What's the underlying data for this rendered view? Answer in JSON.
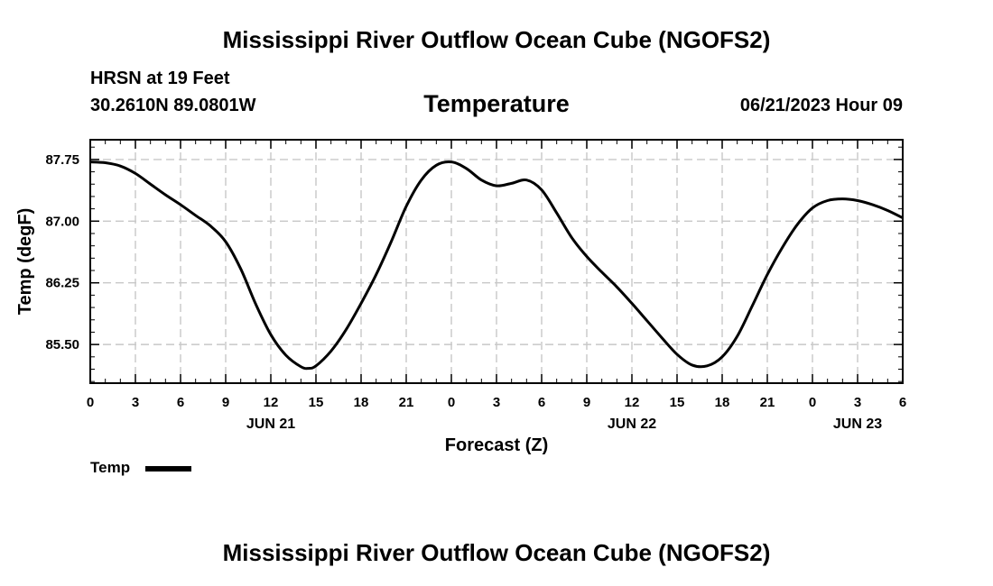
{
  "header": {
    "title": "Mississippi River Outflow Ocean Cube (NGOFS2)",
    "station": "HRSN at 19 Feet",
    "coords": "30.2610N  89.0801W",
    "variable": "Temperature",
    "datetime": "06/21/2023 Hour 09"
  },
  "footer": {
    "title": "Mississippi River Outflow Ocean Cube (NGOFS2)"
  },
  "legend": {
    "label": "Temp"
  },
  "chart_data": {
    "type": "line",
    "title": "Temperature",
    "xlabel": "Forecast (Z)",
    "ylabel": "Temp (degF)",
    "x_unit": "hours since JUN 21 00Z",
    "xlim": [
      0,
      54
    ],
    "ylim": [
      85.03,
      87.99
    ],
    "yticks": [
      85.5,
      86.25,
      87.0,
      87.75
    ],
    "ytick_labels": [
      "85.50",
      "86.25",
      "87.00",
      "87.75"
    ],
    "xticks": [
      0,
      3,
      6,
      9,
      12,
      15,
      18,
      21,
      24,
      27,
      30,
      33,
      36,
      39,
      42,
      45,
      48,
      51,
      54
    ],
    "xtick_labels": [
      "0",
      "3",
      "6",
      "9",
      "12",
      "15",
      "18",
      "21",
      "0",
      "3",
      "6",
      "9",
      "12",
      "15",
      "18",
      "21",
      "0",
      "3",
      "6"
    ],
    "date_labels": [
      {
        "x": 12,
        "label": "JUN 21"
      },
      {
        "x": 36,
        "label": "JUN 22"
      },
      {
        "x": 51,
        "label": "JUN 23"
      }
    ],
    "grid": true,
    "series": [
      {
        "name": "Temp",
        "color": "#000000",
        "x": [
          0,
          1,
          2,
          3,
          4,
          5,
          6,
          7,
          8,
          9,
          10,
          11,
          12,
          13,
          14,
          14.5,
          15,
          16,
          17,
          18,
          19,
          20,
          21,
          22,
          23,
          24,
          25,
          26,
          27,
          28,
          29,
          30,
          31,
          32,
          33,
          34,
          35,
          36,
          37,
          38,
          39,
          40,
          41,
          42,
          43,
          44,
          45,
          46,
          47,
          48,
          49,
          50,
          51,
          52,
          53,
          54
        ],
        "values": [
          87.72,
          87.71,
          87.67,
          87.58,
          87.45,
          87.32,
          87.2,
          87.07,
          86.94,
          86.75,
          86.42,
          85.99,
          85.62,
          85.37,
          85.23,
          85.21,
          85.24,
          85.42,
          85.68,
          86.0,
          86.35,
          86.75,
          87.18,
          87.5,
          87.68,
          87.72,
          87.64,
          87.5,
          87.43,
          87.46,
          87.5,
          87.38,
          87.1,
          86.8,
          86.57,
          86.38,
          86.2,
          86.0,
          85.79,
          85.58,
          85.38,
          85.25,
          85.24,
          85.35,
          85.6,
          85.97,
          86.35,
          86.68,
          86.96,
          87.16,
          87.25,
          87.27,
          87.25,
          87.2,
          87.13,
          87.04
        ]
      }
    ]
  }
}
